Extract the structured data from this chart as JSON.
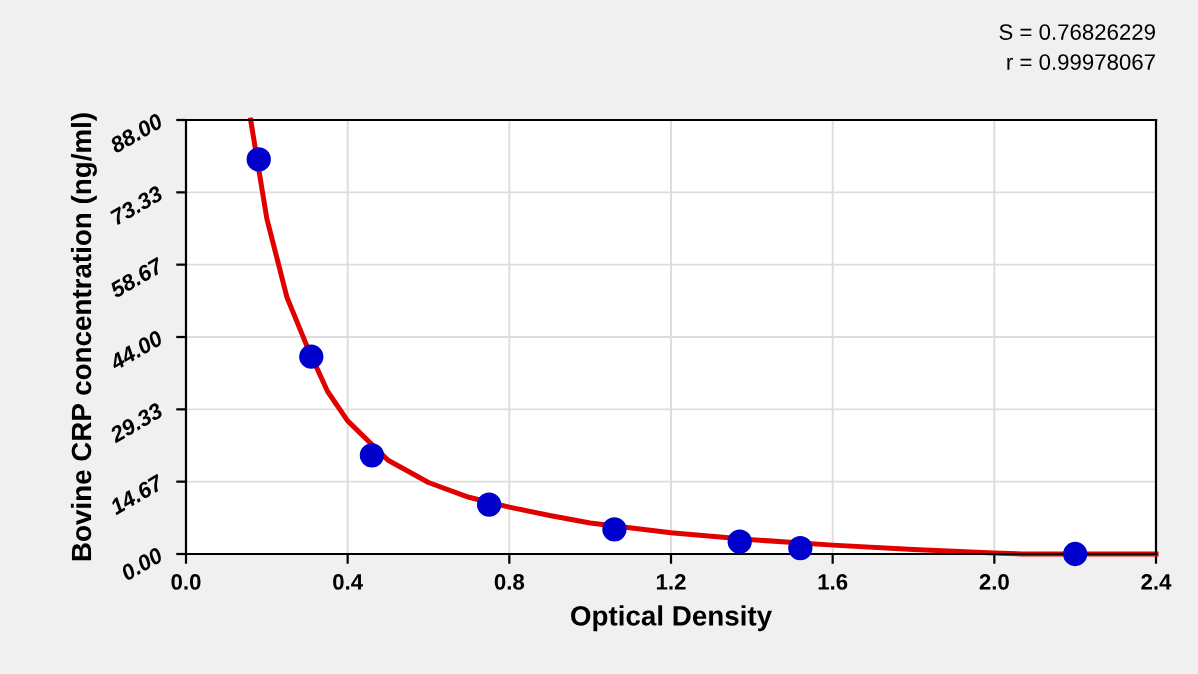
{
  "chart_data": {
    "type": "scatter",
    "xlabel": "Optical Density",
    "ylabel": "Bovine CRP concentration (ng/ml)",
    "annotations": [
      "S = 0.76826229",
      "r = 0.99978067"
    ],
    "series": [
      {
        "color": "#0000cc",
        "marker": "circle",
        "x": [
          0.18,
          0.31,
          0.46,
          0.75,
          1.06,
          1.37,
          1.52,
          2.2
        ],
        "values": [
          80,
          40,
          20,
          10,
          5,
          2.5,
          1.2,
          0
        ]
      },
      {
        "type": "line",
        "color": "#e00000",
        "x": [
          0.16,
          0.2,
          0.25,
          0.3,
          0.35,
          0.4,
          0.5,
          0.6,
          0.7,
          0.8,
          0.9,
          1.0,
          1.2,
          1.4,
          1.6,
          1.8,
          2.0,
          2.07,
          2.4
        ],
        "values": [
          88,
          68,
          52,
          42,
          33,
          27,
          19,
          14.5,
          11.5,
          9.5,
          7.8,
          6.3,
          4.3,
          2.9,
          1.8,
          0.9,
          0.2,
          0,
          0
        ]
      }
    ],
    "xlim": [
      0,
      2.4
    ],
    "ylim": [
      0,
      88
    ],
    "xticks": [
      {
        "value": 0,
        "label": "0.0"
      },
      0.4,
      0.8,
      1.2,
      1.6,
      {
        "value": 2.0,
        "label": "2.0"
      },
      2.4
    ],
    "yticks": [
      {
        "value": 0,
        "label": "0.00"
      },
      {
        "value": 14.67,
        "label": "14.67"
      },
      {
        "value": 29.33,
        "label": "29.33"
      },
      {
        "value": 44,
        "label": "44.00"
      },
      {
        "value": 58.67,
        "label": "58.67"
      },
      {
        "value": 73.33,
        "label": "73.33"
      },
      {
        "value": 88,
        "label": "88.00"
      }
    ],
    "grid": true
  }
}
